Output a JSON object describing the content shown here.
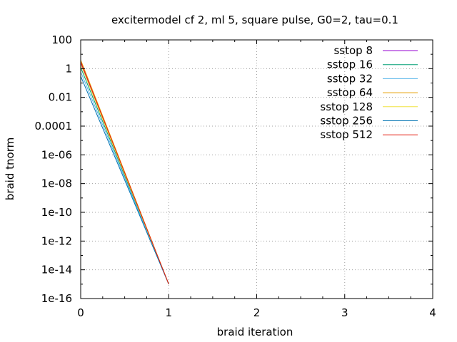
{
  "chart_data": {
    "type": "line",
    "title": "excitermodel cf 2, ml 5, square pulse, G0=2, tau=0.1",
    "xlabel": "braid iteration",
    "ylabel": "braid tnorm",
    "xlim": [
      0,
      4
    ],
    "ylim": [
      1e-16,
      100
    ],
    "yscale": "log",
    "grid": true,
    "legend_position": "top-right",
    "x_ticks": [
      0,
      1,
      2,
      3,
      4
    ],
    "x_tick_labels": [
      "0",
      "1",
      "2",
      "3",
      "4"
    ],
    "y_ticks": [
      100,
      1,
      0.01,
      0.0001,
      1e-06,
      1e-08,
      1e-10,
      1e-12,
      1e-14,
      1e-16
    ],
    "y_tick_labels": [
      "100",
      "1",
      "0.01",
      "0.0001",
      "1e-06",
      "1e-08",
      "1e-10",
      "1e-12",
      "1e-14",
      "1e-16"
    ],
    "series": [
      {
        "name": "sstop 8",
        "color": "#9400d3",
        "x": [
          0,
          1
        ],
        "y": [
          2.5,
          1e-15
        ]
      },
      {
        "name": "sstop 16",
        "color": "#009e73",
        "x": [
          0,
          1
        ],
        "y": [
          1.2,
          1e-15
        ]
      },
      {
        "name": "sstop 32",
        "color": "#56b4e9",
        "x": [
          0,
          1
        ],
        "y": [
          0.6,
          1e-15
        ]
      },
      {
        "name": "sstop 64",
        "color": "#e69f00",
        "x": [
          0,
          1
        ],
        "y": [
          4.0,
          1e-15
        ]
      },
      {
        "name": "sstop 128",
        "color": "#f0e442",
        "x": [
          0,
          1
        ],
        "y": [
          2.0,
          1e-15
        ]
      },
      {
        "name": "sstop 256",
        "color": "#0072b2",
        "x": [
          0,
          1
        ],
        "y": [
          0.3,
          1e-15
        ]
      },
      {
        "name": "sstop 512",
        "color": "#e51e10",
        "x": [
          0,
          1
        ],
        "y": [
          3.0,
          1e-15
        ]
      }
    ]
  }
}
